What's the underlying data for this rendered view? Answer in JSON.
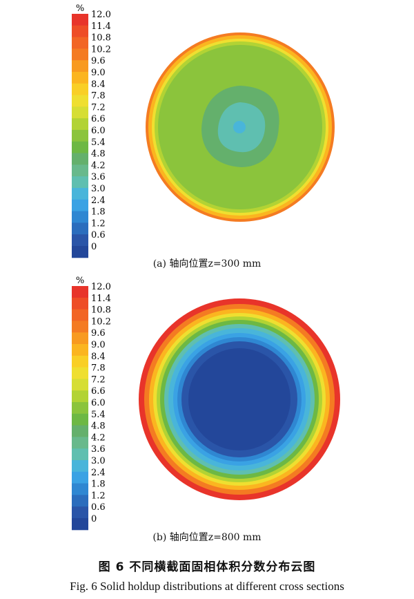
{
  "colorbar": {
    "unit": "%",
    "ticks": [
      "12.0",
      "11.4",
      "10.8",
      "10.2",
      "9.6",
      "9.0",
      "8.4",
      "7.8",
      "7.2",
      "6.6",
      "6.0",
      "5.4",
      "4.8",
      "4.2",
      "3.6",
      "3.0",
      "2.4",
      "1.8",
      "1.2",
      "0.6",
      "0"
    ],
    "colors": [
      "#e8342a",
      "#ee4d26",
      "#f26524",
      "#f47b22",
      "#f89a20",
      "#fbb520",
      "#f9cf26",
      "#efdf30",
      "#d6de34",
      "#b2d334",
      "#8bc43c",
      "#6db844",
      "#64b06c",
      "#68b98c",
      "#5fbfb0",
      "#49b5da",
      "#3aa2e4",
      "#2f87d2",
      "#2b6dbd",
      "#2a55a8",
      "#23479a"
    ]
  },
  "panels": [
    {
      "label": "(a) 轴向位置z=300 mm"
    },
    {
      "label": "(b) 轴向位置z=800 mm"
    }
  ],
  "figure": {
    "caption_cn": "图 6   不同横截面固相体积分数分布云图",
    "caption_en": "Fig. 6   Solid holdup distributions at different cross sections"
  }
}
